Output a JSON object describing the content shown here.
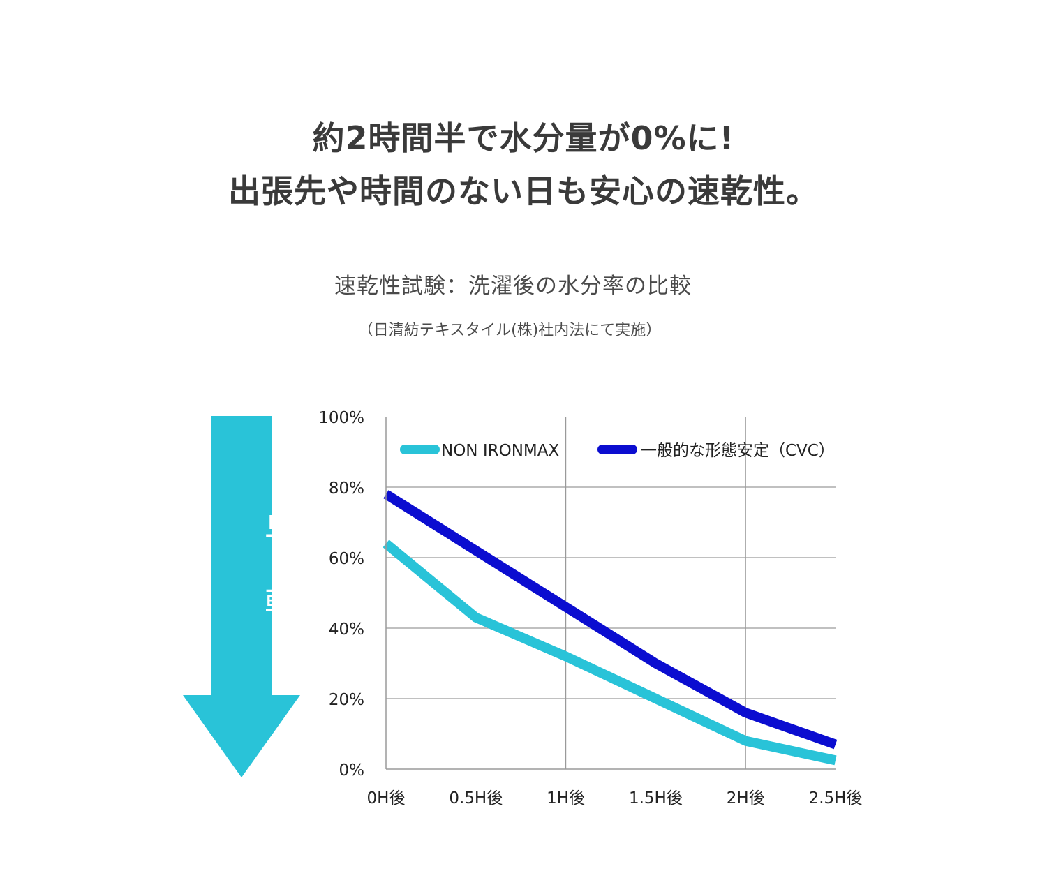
{
  "headline": {
    "line1": "約2時間半で水分量が0%に!",
    "line2": "出張先や時間のない日も安心の速乾性。"
  },
  "test_title": "速乾性試験：洗濯後の水分率の比較",
  "test_note": "（日清紡テキスタイル(株)社内法にて実施）",
  "arrow": {
    "label": "早く乾く",
    "color": "#29c3d8"
  },
  "colors": {
    "non_ironmax": "#29c3d8",
    "cvc": "#0b0dd0",
    "grid": "#9a9a9a"
  },
  "chart_data": {
    "type": "line",
    "x": [
      "0H後",
      "0.5H後",
      "1H後",
      "1.5H後",
      "2H後",
      "2.5H後"
    ],
    "x_ticks": [
      "0H後",
      "0.5H後",
      "1H後",
      "1.5H後",
      "2H後",
      "2.5H後"
    ],
    "y_ticks": [
      "100%",
      "80%",
      "60%",
      "40%",
      "20%",
      "0%"
    ],
    "ylim": [
      0,
      100
    ],
    "grid": true,
    "legend_position": "top",
    "series": [
      {
        "name": "NON IRONMAX",
        "x": [
          0,
          0.5,
          1,
          1.5,
          2,
          2.5
        ],
        "y": [
          64,
          43,
          32,
          20,
          8,
          2.5
        ],
        "color": "#29c3d8"
      },
      {
        "name": "一般的な形態安定（CVC）",
        "x": [
          0,
          0.5,
          1,
          1.5,
          2,
          2.5
        ],
        "y": [
          78,
          62,
          46,
          30,
          16,
          7
        ],
        "color": "#0b0dd0"
      }
    ]
  }
}
